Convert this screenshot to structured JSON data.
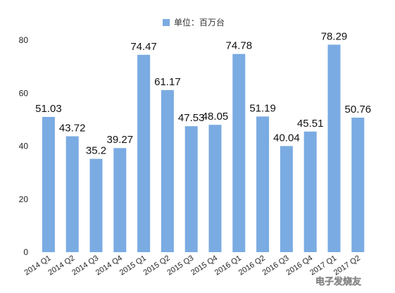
{
  "chart_data": {
    "type": "bar",
    "legend": {
      "label": "单位：百万台",
      "position": "top-center"
    },
    "categories": [
      "2014 Q1",
      "2014 Q2",
      "2014 Q3",
      "2014 Q4",
      "2015 Q1",
      "2015 Q2",
      "2015 Q3",
      "2015 Q4",
      "2016 Q1",
      "2016 Q2",
      "2016 Q3",
      "2016 Q4",
      "2017 Q1",
      "2017 Q2"
    ],
    "series": [
      {
        "name": "单位：百万台",
        "values": [
          51.03,
          43.72,
          35.2,
          39.27,
          74.47,
          61.17,
          47.53,
          48.05,
          74.78,
          51.19,
          40.04,
          45.51,
          78.29,
          50.76
        ]
      }
    ],
    "data_labels": [
      "51.03",
      "43.72",
      "35.2",
      "39.27",
      "74.47",
      "61.17",
      "47.53",
      "48.05",
      "74.78",
      "51.19",
      "40.04",
      "45.51",
      "78.29",
      "50.76"
    ],
    "ylim": [
      0,
      80
    ],
    "yticks": [
      "0",
      "20",
      "40",
      "60",
      "80"
    ],
    "grid": false,
    "colors": {
      "bar": "#7aabe2"
    }
  },
  "watermark": "电子发烧友"
}
